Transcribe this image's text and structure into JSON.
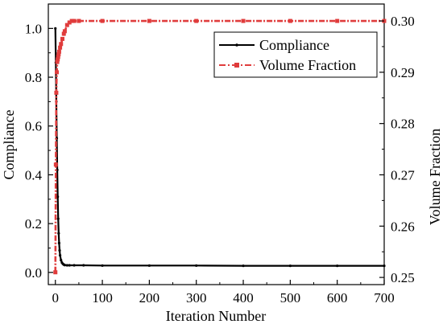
{
  "chart_data": {
    "type": "line",
    "title": "",
    "xlabel": "Iteration Number",
    "ylabel_left": "Compliance",
    "ylabel_right": "Volume Fraction",
    "xlim": [
      -15,
      700
    ],
    "ylim_left": [
      -0.05,
      1.1
    ],
    "ylim_right": [
      0.2486,
      0.3033
    ],
    "x_ticks": [
      0,
      100,
      200,
      300,
      400,
      500,
      600,
      700
    ],
    "y_left_ticks": [
      "0.0",
      "0.2",
      "0.4",
      "0.6",
      "0.8",
      "1.0"
    ],
    "y_right_ticks": [
      "0.25",
      "0.26",
      "0.27",
      "0.28",
      "0.29",
      "0.30"
    ],
    "grid": false,
    "legend_position": "top-right",
    "series": [
      {
        "name": "Compliance",
        "axis": "left",
        "color": "#000000",
        "style": "solid with small markers",
        "x": [
          0,
          1,
          2,
          3,
          4,
          5,
          6,
          7,
          8,
          9,
          10,
          12,
          14,
          16,
          18,
          20,
          25,
          30,
          40,
          60,
          100,
          200,
          300,
          400,
          500,
          600,
          700
        ],
        "y": [
          1.0,
          0.86,
          0.7,
          0.55,
          0.42,
          0.31,
          0.22,
          0.16,
          0.12,
          0.09,
          0.07,
          0.05,
          0.04,
          0.035,
          0.032,
          0.03,
          0.029,
          0.029,
          0.029,
          0.029,
          0.028,
          0.028,
          0.028,
          0.027,
          0.027,
          0.027,
          0.027
        ]
      },
      {
        "name": "Volume Fraction",
        "axis": "right",
        "color": "#e03c3c",
        "style": "dash-dot with markers",
        "x": [
          0,
          1,
          2,
          3,
          4,
          5,
          6,
          7,
          8,
          10,
          12,
          15,
          18,
          20,
          25,
          30,
          35,
          40,
          50,
          100,
          200,
          300,
          400,
          500,
          600,
          700
        ],
        "y": [
          0.251,
          0.272,
          0.286,
          0.29,
          0.292,
          0.2925,
          0.293,
          0.2935,
          0.294,
          0.2948,
          0.2955,
          0.2965,
          0.2975,
          0.298,
          0.2992,
          0.2997,
          0.3,
          0.3,
          0.3,
          0.3,
          0.3,
          0.3,
          0.3,
          0.3,
          0.3,
          0.3
        ]
      }
    ]
  }
}
